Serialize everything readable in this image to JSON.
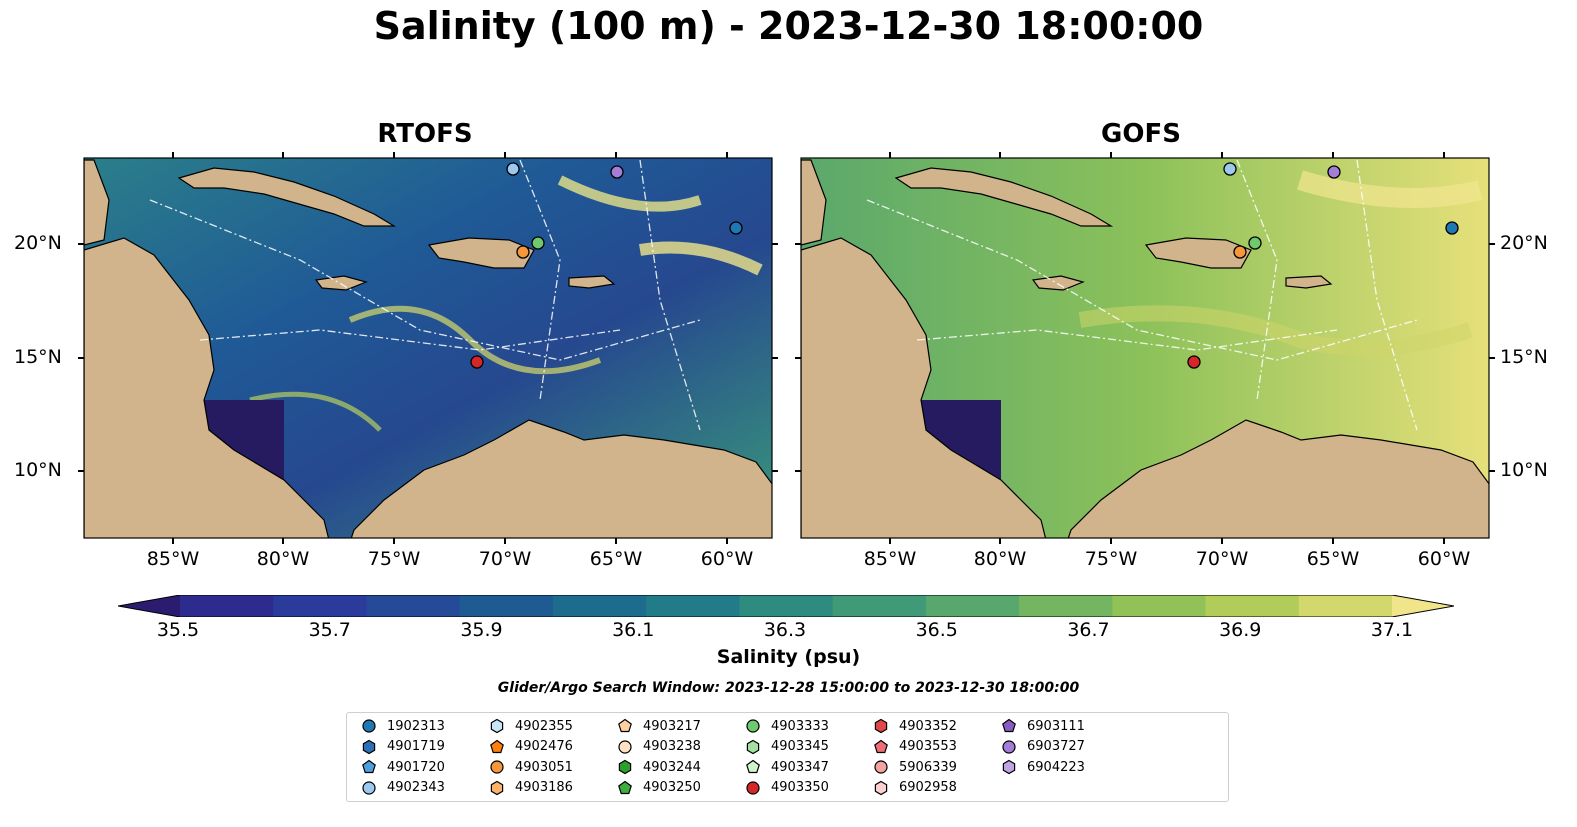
{
  "title": "Salinity (100 m) - 2023-12-30 18:00:00",
  "panels": [
    {
      "title": "RTOFS"
    },
    {
      "title": "GOFS"
    }
  ],
  "lat_labels": [
    "20°N",
    "15°N",
    "10°N"
  ],
  "lon_labels": [
    "85°W",
    "80°W",
    "75°W",
    "70°W",
    "65°W",
    "60°W"
  ],
  "colorbar": {
    "label": "Salinity (psu)",
    "ticks": [
      "35.5",
      "35.7",
      "35.9",
      "36.1",
      "36.3",
      "36.5",
      "36.7",
      "36.9",
      "37.1"
    ],
    "colors": [
      "#2b1c6f",
      "#2e2b8f",
      "#2a3b9b",
      "#244a98",
      "#1f5b93",
      "#1d6b8d",
      "#227b88",
      "#2e8b80",
      "#409a78",
      "#58a86d",
      "#74b562",
      "#92c157",
      "#b2cc5a",
      "#d2d86c",
      "#f0e58a"
    ]
  },
  "search_window": "Glider/Argo Search Window: 2023-12-28 15:00:00 to 2023-12-30 18:00:00",
  "colors": {
    "land": "#d2b48c",
    "shallow_water": "#9ab4df",
    "deep_low": "#261a60"
  },
  "legend": [
    {
      "id": "1902313",
      "marker": "circle",
      "color": "#1f77b4"
    },
    {
      "id": "4901719",
      "marker": "hexagon",
      "color": "#2f6fb5"
    },
    {
      "id": "4901720",
      "marker": "pentagon",
      "color": "#4e9fdc"
    },
    {
      "id": "4902343",
      "marker": "circle",
      "color": "#9ec9ee"
    },
    {
      "id": "4902355",
      "marker": "hexagon",
      "color": "#c8e5f7"
    },
    {
      "id": "4902476",
      "marker": "pentagon",
      "color": "#ff7f0e"
    },
    {
      "id": "4903051",
      "marker": "circle",
      "color": "#f5973a"
    },
    {
      "id": "4903186",
      "marker": "hexagon",
      "color": "#ffb26b"
    },
    {
      "id": "4903217",
      "marker": "pentagon",
      "color": "#ffd0a0"
    },
    {
      "id": "4903238",
      "marker": "circle",
      "color": "#ffe2c4"
    },
    {
      "id": "4903244",
      "marker": "hexagon",
      "color": "#2ca02c"
    },
    {
      "id": "4903250",
      "marker": "pentagon",
      "color": "#3fae3f"
    },
    {
      "id": "4903333",
      "marker": "circle",
      "color": "#6fc96f"
    },
    {
      "id": "4903345",
      "marker": "hexagon",
      "color": "#a4e0a0"
    },
    {
      "id": "4903347",
      "marker": "pentagon",
      "color": "#d0f5cc"
    },
    {
      "id": "4903350",
      "marker": "circle",
      "color": "#d62728"
    },
    {
      "id": "4903352",
      "marker": "hexagon",
      "color": "#e0474a"
    },
    {
      "id": "4903553",
      "marker": "pentagon",
      "color": "#ee6d76"
    },
    {
      "id": "5906339",
      "marker": "circle",
      "color": "#f4a3a3"
    },
    {
      "id": "6902958",
      "marker": "hexagon",
      "color": "#fbd0d0"
    },
    {
      "id": "6903111",
      "marker": "pentagon",
      "color": "#8a5cc1"
    },
    {
      "id": "6903727",
      "marker": "circle",
      "color": "#a47ed6"
    },
    {
      "id": "6904223",
      "marker": "hexagon",
      "color": "#c0a4e6"
    }
  ]
}
